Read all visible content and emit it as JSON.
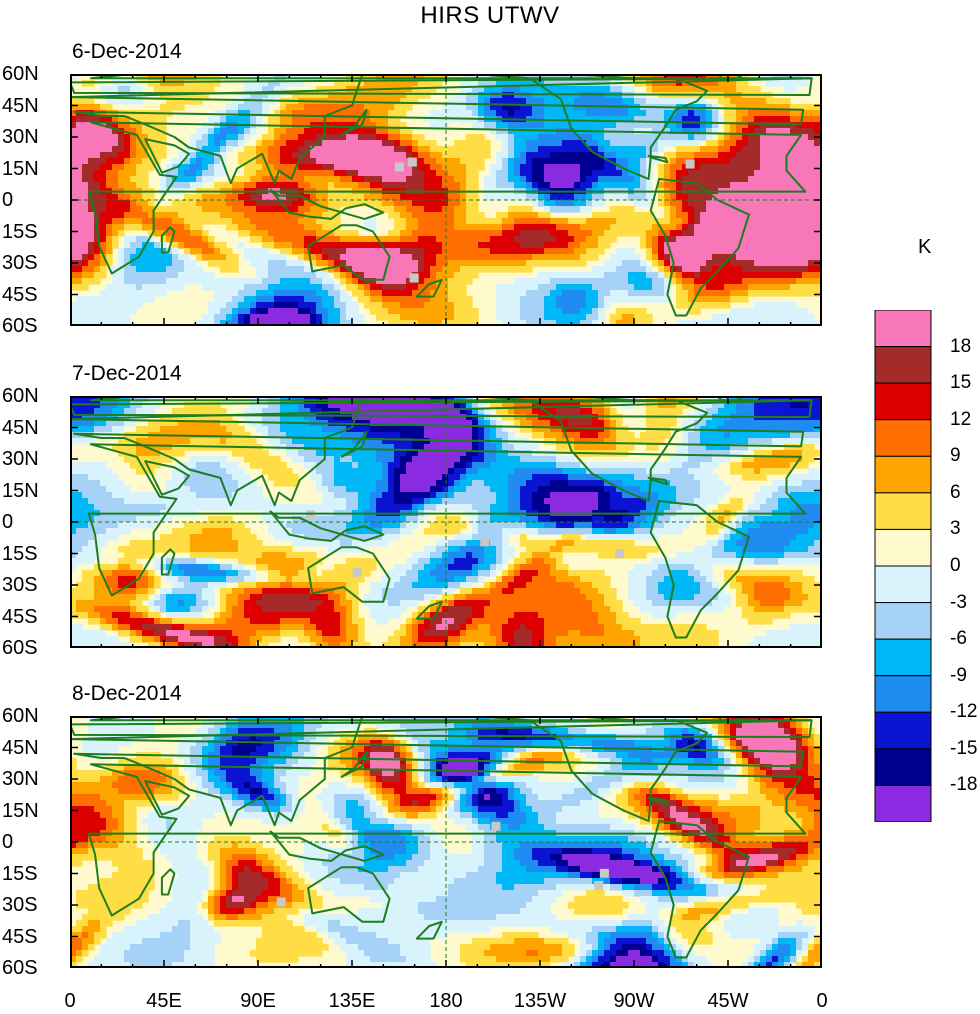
{
  "title": "HIRS UTWV",
  "unit": "K",
  "panels": [
    {
      "date": "6-Dec-2014",
      "seed": 11
    },
    {
      "date": "7-Dec-2014",
      "seed": 29
    },
    {
      "date": "8-Dec-2014",
      "seed": 53
    }
  ],
  "lat_labels": [
    "60N",
    "45N",
    "30N",
    "15N",
    "0",
    "15S",
    "30S",
    "45S",
    "60S"
  ],
  "lon_labels": [
    "0",
    "45E",
    "90E",
    "135E",
    "180",
    "135W",
    "90W",
    "45W",
    "0"
  ],
  "legend": {
    "colors": [
      "#f777b8",
      "#a52a2a",
      "#dd0000",
      "#ff6e00",
      "#ffa500",
      "#ffdd44",
      "#fffacd",
      "#d8f3fb",
      "#a6d2f7",
      "#00b8f5",
      "#1e8cf0",
      "#0a14d2",
      "#000090",
      "#8a2be2"
    ],
    "labels": [
      "18",
      "15",
      "12",
      "9",
      "6",
      "3",
      "0",
      "-3",
      "-6",
      "-9",
      "-12",
      "-15",
      "-18"
    ]
  }
}
